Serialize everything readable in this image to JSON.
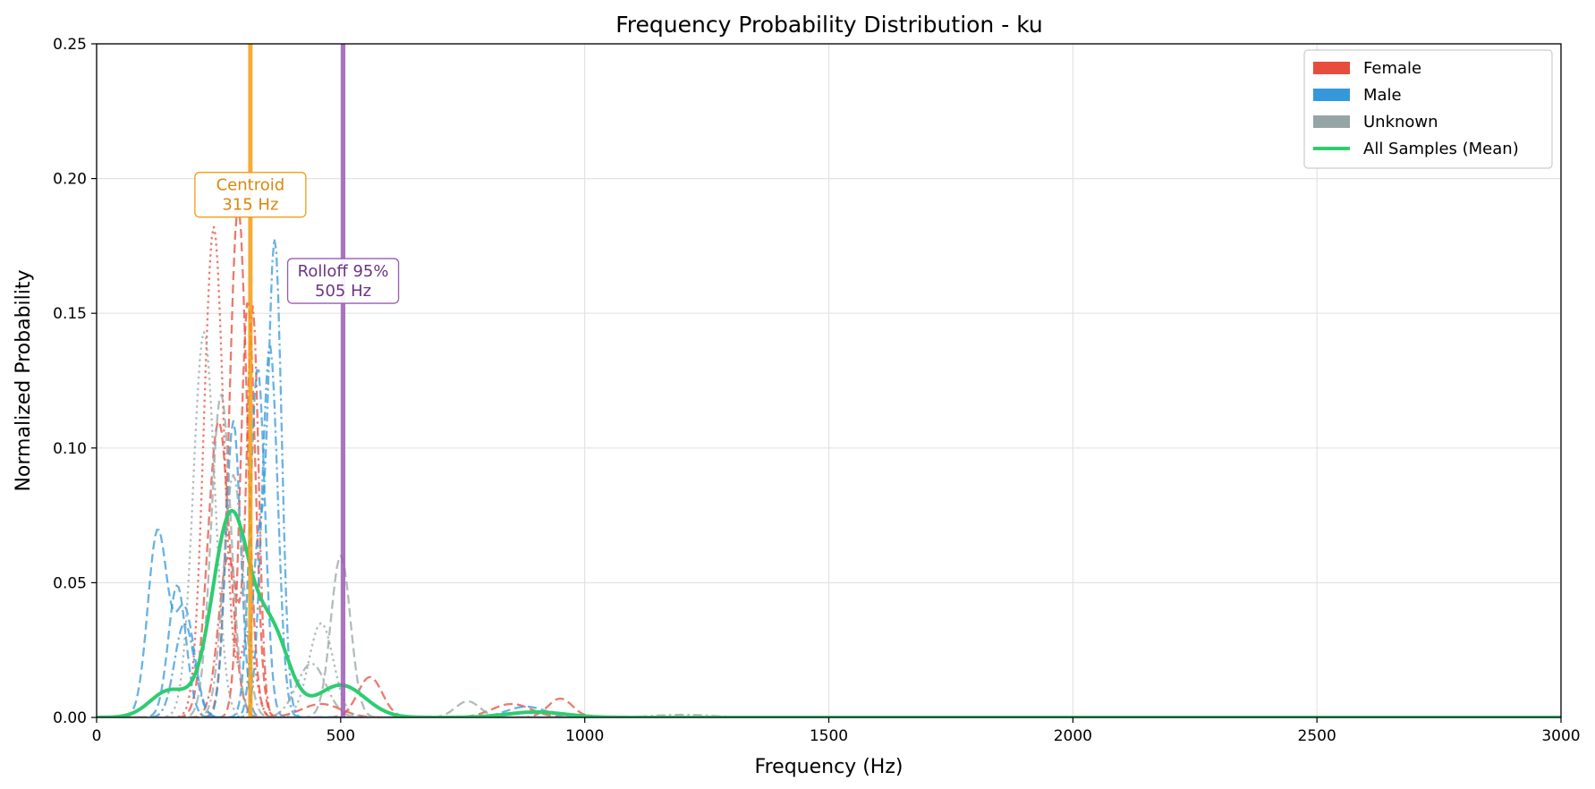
{
  "chart_data": {
    "type": "line",
    "title": "Frequency Probability Distribution - ku",
    "xlabel": "Frequency (Hz)",
    "ylabel": "Normalized Probability",
    "xlim": [
      0,
      3000
    ],
    "ylim": [
      0,
      0.25
    ],
    "xticks": [
      0,
      500,
      1000,
      1500,
      2000,
      2500,
      3000
    ],
    "yticks": [
      0.0,
      0.05,
      0.1,
      0.15,
      0.2,
      0.25
    ],
    "xtick_labels": [
      "0",
      "500",
      "1000",
      "1500",
      "2000",
      "2500",
      "3000"
    ],
    "ytick_labels": [
      "0.00",
      "0.05",
      "0.10",
      "0.15",
      "0.20",
      "0.25"
    ],
    "grid": true,
    "legend_position": "top-right",
    "legend": [
      {
        "label": "Female",
        "color": "#e74c3c",
        "kind": "patch"
      },
      {
        "label": "Male",
        "color": "#3498db",
        "kind": "patch"
      },
      {
        "label": "Unknown",
        "color": "#95a5a6",
        "kind": "patch"
      },
      {
        "label": "All Samples (Mean)",
        "color": "#2ecc71",
        "kind": "line"
      }
    ],
    "vlines": [
      {
        "name": "Centroid",
        "x": 315,
        "color": "#f39c12",
        "label_lines": [
          "Centroid",
          "315 Hz"
        ],
        "label_y": 0.194,
        "text_color": "#d68910"
      },
      {
        "name": "Rolloff 95%",
        "x": 505,
        "color": "#9b59b6",
        "label_lines": [
          "Rolloff 95%",
          "505 Hz"
        ],
        "label_y": 0.162,
        "text_color": "#6c3483"
      }
    ],
    "series": [
      {
        "name": "All Samples (Mean)",
        "color": "#2ecc71",
        "dash": "solid",
        "width": 4,
        "opacity": 1.0,
        "peaks": [
          [
            275,
            0.075,
            38
          ],
          [
            360,
            0.03,
            35
          ],
          [
            500,
            0.012,
            50
          ],
          [
            150,
            0.01,
            40
          ],
          [
            900,
            0.002,
            60
          ]
        ]
      },
      {
        "group": "Female",
        "color": "#e74c3c",
        "dash": "dashed",
        "width": 2.3,
        "opacity": 0.75,
        "peaks": [
          [
            290,
            0.19,
            18
          ],
          [
            560,
            0.015,
            25
          ]
        ]
      },
      {
        "group": "Female",
        "color": "#e74c3c",
        "dash": "dotted",
        "width": 2.3,
        "opacity": 0.75,
        "peaks": [
          [
            240,
            0.182,
            20
          ],
          [
            310,
            0.03,
            15
          ]
        ]
      },
      {
        "group": "Female",
        "color": "#e74c3c",
        "dash": "dashed",
        "width": 2.3,
        "opacity": 0.75,
        "peaks": [
          [
            310,
            0.155,
            15
          ],
          [
            460,
            0.005,
            40
          ],
          [
            850,
            0.005,
            40
          ]
        ]
      },
      {
        "group": "Female",
        "color": "#e74c3c",
        "dash": "dashdot",
        "width": 2.3,
        "opacity": 0.75,
        "peaks": [
          [
            270,
            0.06,
            20
          ],
          [
            320,
            0.15,
            12
          ]
        ]
      },
      {
        "group": "Female",
        "color": "#e74c3c",
        "dash": "dashed",
        "width": 2.3,
        "opacity": 0.75,
        "peaks": [
          [
            250,
            0.11,
            22
          ],
          [
            950,
            0.007,
            25
          ]
        ]
      },
      {
        "group": "Male",
        "color": "#3498db",
        "dash": "dashed",
        "width": 2.3,
        "opacity": 0.75,
        "peaks": [
          [
            125,
            0.069,
            20
          ],
          [
            180,
            0.04,
            20
          ]
        ]
      },
      {
        "group": "Male",
        "color": "#3498db",
        "dash": "dashdot",
        "width": 2.3,
        "opacity": 0.75,
        "peaks": [
          [
            365,
            0.177,
            14
          ],
          [
            330,
            0.06,
            12
          ]
        ]
      },
      {
        "group": "Male",
        "color": "#3498db",
        "dash": "dashed",
        "width": 2.3,
        "opacity": 0.75,
        "peaks": [
          [
            165,
            0.049,
            18
          ],
          [
            330,
            0.13,
            15
          ]
        ]
      },
      {
        "group": "Male",
        "color": "#3498db",
        "dash": "dashdot",
        "width": 2.3,
        "opacity": 0.75,
        "peaks": [
          [
            355,
            0.138,
            16
          ],
          [
            180,
            0.035,
            20
          ]
        ]
      },
      {
        "group": "Male",
        "color": "#3498db",
        "dash": "dashed",
        "width": 2.3,
        "opacity": 0.75,
        "peaks": [
          [
            280,
            0.11,
            15
          ],
          [
            880,
            0.004,
            40
          ]
        ]
      },
      {
        "group": "Unknown",
        "color": "#95a5a6",
        "dash": "dotted",
        "width": 2.3,
        "opacity": 0.75,
        "peaks": [
          [
            220,
            0.143,
            22
          ],
          [
            460,
            0.035,
            25
          ]
        ]
      },
      {
        "group": "Unknown",
        "color": "#95a5a6",
        "dash": "dashed",
        "width": 2.3,
        "opacity": 0.75,
        "peaks": [
          [
            255,
            0.12,
            20
          ],
          [
            500,
            0.06,
            20
          ],
          [
            760,
            0.006,
            25
          ]
        ]
      },
      {
        "group": "Unknown",
        "color": "#95a5a6",
        "dash": "dashdot",
        "width": 2.3,
        "opacity": 0.75,
        "peaks": [
          [
            280,
            0.09,
            20
          ],
          [
            440,
            0.02,
            30
          ],
          [
            1200,
            0.001,
            60
          ]
        ]
      }
    ]
  }
}
